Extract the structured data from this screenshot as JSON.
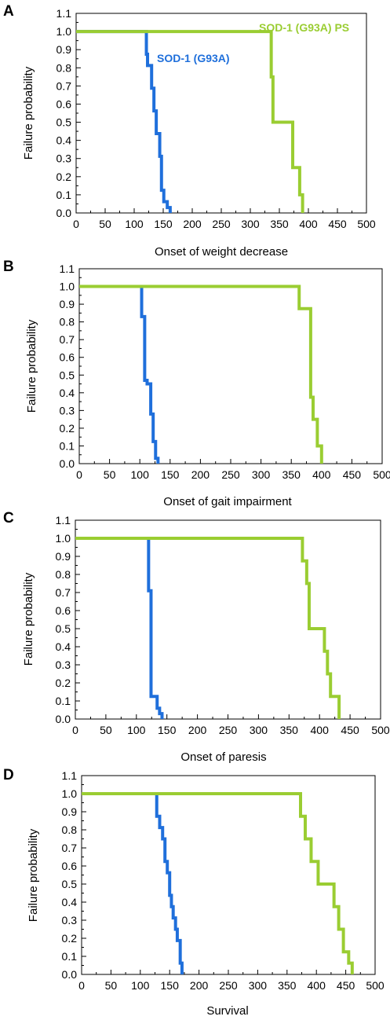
{
  "colors": {
    "sod1_g93a": "#1f6fdb",
    "sod1_g93a_ps": "#9acd32"
  },
  "chart_data": [
    {
      "panel": "A",
      "type": "line",
      "step": true,
      "xlabel": "Onset of weight decrease",
      "ylabel": "Failure probability",
      "xlim": [
        0,
        500
      ],
      "ylim": [
        0,
        1.1
      ],
      "xticks": [
        0,
        50,
        100,
        150,
        200,
        250,
        300,
        350,
        400,
        450,
        500
      ],
      "yticks": [
        0.0,
        0.1,
        0.2,
        0.3,
        0.4,
        0.5,
        0.6,
        0.7,
        0.8,
        0.9,
        1.0,
        1.1
      ],
      "series": [
        {
          "name": "SOD-1 (G93A)",
          "color": "#1f6fdb",
          "x": [
            0,
            121,
            123,
            130,
            134,
            138,
            144,
            147,
            151,
            157,
            162
          ],
          "y": [
            1.0,
            0.875,
            0.8125,
            0.6875,
            0.5625,
            0.4375,
            0.3125,
            0.125,
            0.0625,
            0.03,
            0.0
          ]
        },
        {
          "name": "SOD-1 (G93A) PS",
          "color": "#9acd32",
          "x": [
            0,
            336,
            339,
            345,
            373,
            376,
            385,
            390
          ],
          "y": [
            1.0,
            0.75,
            0.5,
            0.5,
            0.25,
            0.25,
            0.1,
            0.0
          ]
        }
      ]
    },
    {
      "panel": "B",
      "type": "line",
      "step": true,
      "xlabel": "Onset of gait impairment",
      "ylabel": "Failure probability",
      "xlim": [
        0,
        500
      ],
      "ylim": [
        0,
        1.1
      ],
      "xticks": [
        0,
        50,
        100,
        150,
        200,
        250,
        300,
        350,
        400,
        450,
        500
      ],
      "yticks": [
        0.0,
        0.1,
        0.2,
        0.3,
        0.4,
        0.5,
        0.6,
        0.7,
        0.8,
        0.9,
        1.0,
        1.1
      ],
      "series": [
        {
          "name": "",
          "color": "#1f6fdb",
          "x": [
            0,
            103,
            108,
            112,
            118,
            122,
            126,
            130
          ],
          "y": [
            1.0,
            0.83,
            0.47,
            0.45,
            0.28,
            0.125,
            0.03,
            0.0
          ]
        },
        {
          "name": "",
          "color": "#9acd32",
          "x": [
            0,
            363,
            376,
            382,
            386,
            393,
            400
          ],
          "y": [
            1.0,
            0.875,
            0.875,
            0.375,
            0.25,
            0.1,
            0.0
          ]
        }
      ]
    },
    {
      "panel": "C",
      "type": "line",
      "step": true,
      "xlabel": "Onset of paresis",
      "ylabel": "Failure probability",
      "xlim": [
        0,
        500
      ],
      "ylim": [
        0,
        1.1
      ],
      "xticks": [
        0,
        50,
        100,
        150,
        200,
        250,
        300,
        350,
        400,
        450,
        500
      ],
      "yticks": [
        0.0,
        0.1,
        0.2,
        0.3,
        0.4,
        0.5,
        0.6,
        0.7,
        0.8,
        0.9,
        1.0,
        1.1
      ],
      "series": [
        {
          "name": "",
          "color": "#1f6fdb",
          "x": [
            0,
            120,
            124,
            130,
            134,
            138,
            142
          ],
          "y": [
            1.0,
            0.71,
            0.125,
            0.125,
            0.06,
            0.03,
            0.0
          ]
        },
        {
          "name": "",
          "color": "#9acd32",
          "x": [
            0,
            372,
            379,
            383,
            390,
            408,
            413,
            418,
            426,
            432
          ],
          "y": [
            1.0,
            0.875,
            0.75,
            0.5,
            0.5,
            0.375,
            0.25,
            0.125,
            0.125,
            0.0
          ]
        }
      ]
    },
    {
      "panel": "D",
      "type": "line",
      "step": true,
      "xlabel": "Survival",
      "ylabel": "Failure probability",
      "xlim": [
        0,
        500
      ],
      "ylim": [
        0,
        1.1
      ],
      "xticks": [
        0,
        50,
        100,
        150,
        200,
        250,
        300,
        350,
        400,
        450,
        500
      ],
      "yticks": [
        0.0,
        0.1,
        0.2,
        0.3,
        0.4,
        0.5,
        0.6,
        0.7,
        0.8,
        0.9,
        1.0,
        1.1
      ],
      "series": [
        {
          "name": "",
          "color": "#1f6fdb",
          "x": [
            0,
            128,
            133,
            138,
            142,
            146,
            150,
            153,
            156,
            160,
            163,
            168,
            171
          ],
          "y": [
            1.0,
            0.875,
            0.8125,
            0.75,
            0.625,
            0.5625,
            0.4375,
            0.375,
            0.3125,
            0.25,
            0.1875,
            0.0625,
            0.0
          ]
        },
        {
          "name": "",
          "color": "#9acd32",
          "x": [
            0,
            373,
            381,
            391,
            403,
            418,
            430,
            438,
            446,
            455,
            461
          ],
          "y": [
            1.0,
            0.875,
            0.75,
            0.625,
            0.5,
            0.5,
            0.375,
            0.25,
            0.125,
            0.0625,
            0.0
          ]
        }
      ]
    }
  ]
}
